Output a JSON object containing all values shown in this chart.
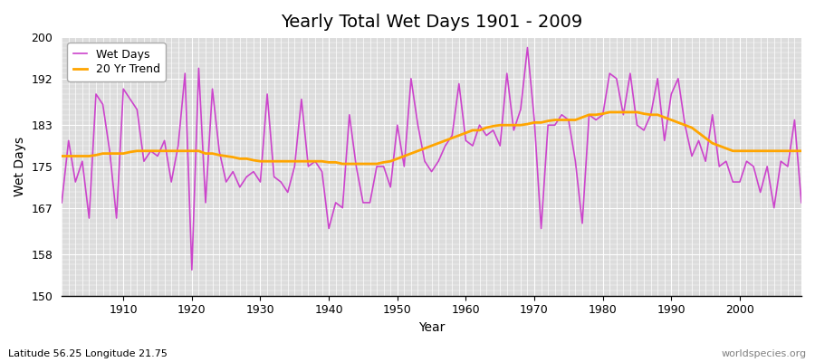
{
  "title": "Yearly Total Wet Days 1901 - 2009",
  "xlabel": "Year",
  "ylabel": "Wet Days",
  "subtitle": "Latitude 56.25 Longitude 21.75",
  "watermark": "worldspecies.org",
  "ylim": [
    150,
    200
  ],
  "yticks": [
    150,
    158,
    167,
    175,
    183,
    192,
    200
  ],
  "bg_color": "#ffffff",
  "plot_bg_color": "#dcdcdc",
  "wet_days_color": "#cc44cc",
  "trend_color": "#ffa500",
  "years": [
    1901,
    1902,
    1903,
    1904,
    1905,
    1906,
    1907,
    1908,
    1909,
    1910,
    1911,
    1912,
    1913,
    1914,
    1915,
    1916,
    1917,
    1918,
    1919,
    1920,
    1921,
    1922,
    1923,
    1924,
    1925,
    1926,
    1927,
    1928,
    1929,
    1930,
    1931,
    1932,
    1933,
    1934,
    1935,
    1936,
    1937,
    1938,
    1939,
    1940,
    1941,
    1942,
    1943,
    1944,
    1945,
    1946,
    1947,
    1948,
    1949,
    1950,
    1951,
    1952,
    1953,
    1954,
    1955,
    1956,
    1957,
    1958,
    1959,
    1960,
    1961,
    1962,
    1963,
    1964,
    1965,
    1966,
    1967,
    1968,
    1969,
    1970,
    1971,
    1972,
    1973,
    1974,
    1975,
    1976,
    1977,
    1978,
    1979,
    1980,
    1981,
    1982,
    1983,
    1984,
    1985,
    1986,
    1987,
    1988,
    1989,
    1990,
    1991,
    1992,
    1993,
    1994,
    1995,
    1996,
    1997,
    1998,
    1999,
    2000,
    2001,
    2002,
    2003,
    2004,
    2005,
    2006,
    2007,
    2008,
    2009
  ],
  "wet_days": [
    168,
    180,
    172,
    176,
    165,
    189,
    187,
    178,
    165,
    190,
    188,
    186,
    176,
    178,
    177,
    180,
    172,
    179,
    193,
    155,
    194,
    168,
    190,
    178,
    172,
    174,
    171,
    173,
    174,
    172,
    189,
    173,
    172,
    170,
    175,
    188,
    175,
    176,
    174,
    163,
    168,
    167,
    185,
    175,
    168,
    168,
    175,
    175,
    171,
    183,
    175,
    192,
    183,
    176,
    174,
    176,
    179,
    181,
    191,
    180,
    179,
    183,
    181,
    182,
    179,
    193,
    182,
    186,
    198,
    184,
    163,
    183,
    183,
    185,
    184,
    176,
    164,
    185,
    184,
    185,
    193,
    192,
    185,
    193,
    183,
    182,
    185,
    192,
    180,
    189,
    192,
    183,
    177,
    180,
    176,
    185,
    175,
    176,
    172,
    172,
    176,
    175,
    170,
    175,
    167,
    176,
    175,
    184,
    168
  ],
  "trend": [
    177.0,
    177.0,
    177.0,
    177.0,
    177.0,
    177.2,
    177.5,
    177.5,
    177.5,
    177.5,
    177.8,
    178.0,
    178.0,
    178.0,
    178.0,
    178.0,
    178.0,
    178.0,
    178.0,
    178.0,
    178.0,
    177.5,
    177.5,
    177.2,
    177.0,
    176.8,
    176.5,
    176.5,
    176.2,
    176.0,
    176.0,
    176.0,
    176.0,
    176.0,
    176.0,
    176.0,
    176.0,
    176.0,
    176.0,
    175.8,
    175.8,
    175.5,
    175.5,
    175.5,
    175.5,
    175.5,
    175.5,
    175.8,
    176.0,
    176.5,
    177.0,
    177.5,
    178.0,
    178.5,
    179.0,
    179.5,
    180.0,
    180.5,
    181.0,
    181.5,
    182.0,
    182.0,
    182.5,
    182.8,
    183.0,
    183.0,
    183.0,
    183.0,
    183.2,
    183.5,
    183.5,
    183.8,
    184.0,
    184.0,
    184.0,
    184.0,
    184.5,
    185.0,
    185.0,
    185.2,
    185.5,
    185.5,
    185.5,
    185.5,
    185.5,
    185.2,
    185.0,
    185.0,
    184.5,
    184.0,
    183.5,
    183.0,
    182.5,
    181.5,
    180.5,
    179.5,
    179.0,
    178.5,
    178.0,
    178.0,
    178.0,
    178.0,
    178.0,
    178.0,
    178.0,
    178.0,
    178.0,
    178.0,
    178.0
  ]
}
